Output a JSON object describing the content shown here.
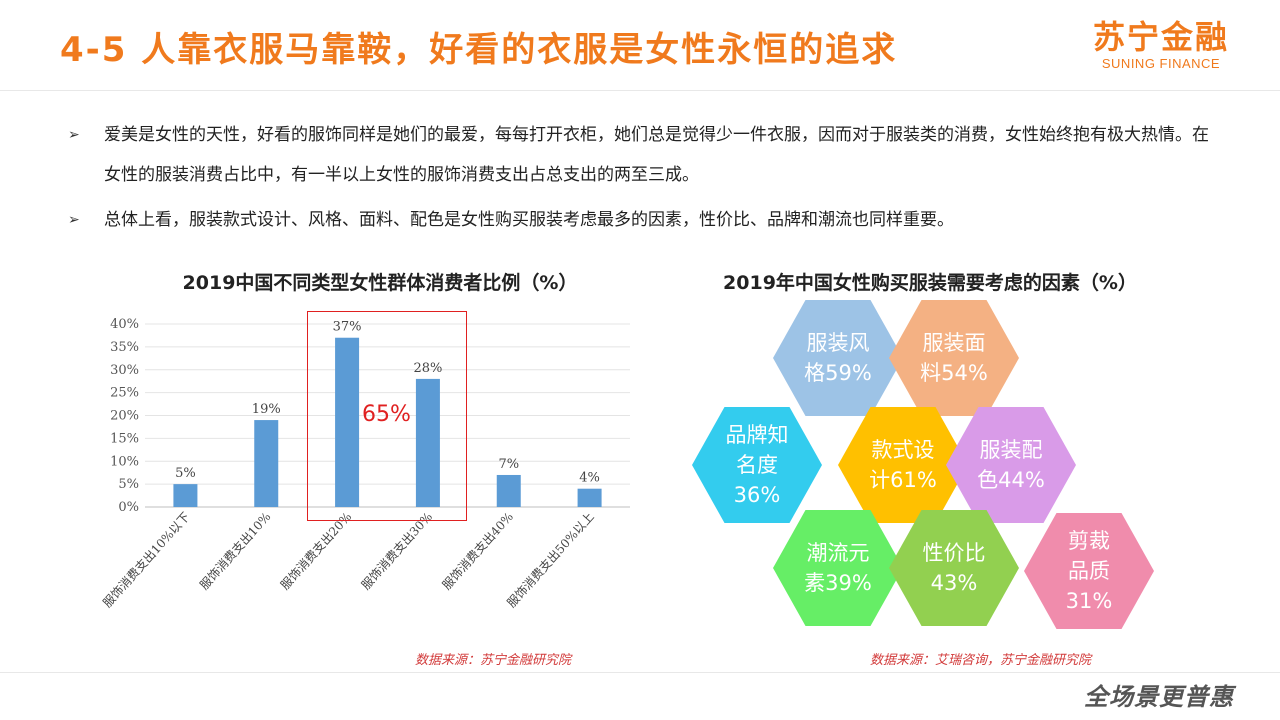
{
  "header": {
    "title": "4-5  人靠衣服马靠鞍，好看的衣服是女性永恒的追求",
    "logo_cn": "苏宁金融",
    "logo_en": "SUNING FINANCE"
  },
  "bullets": [
    "爱美是女性的天性，好看的服饰同样是她们的最爱，每每打开衣柜，她们总是觉得少一件衣服，因而对于服装类的消费，女性始终抱有极大热情。在女性的服装消费占比中，有一半以上女性的服饰消费支出占总支出的两至三成。",
    "总体上看，服装款式设计、风格、面料、配色是女性购买服装考虑最多的因素，性价比、品牌和潮流也同样重要。"
  ],
  "bullet_marker": "➢",
  "bar_chart": {
    "highlight_label": "65%",
    "source": "数据来源：苏宁金融研究院"
  },
  "chart_data": [
    {
      "type": "bar",
      "title": "2019中国不同类型女性群体消费者比例（%）",
      "categories": [
        "服饰消费支出10%以下",
        "服饰消费支出10%",
        "服饰消费支出20%",
        "服饰消费支出30%",
        "服饰消费支出40%",
        "服饰消费支出50%以上"
      ],
      "values": [
        5,
        19,
        37,
        28,
        7,
        4
      ],
      "data_labels": [
        "5%",
        "19%",
        "37%",
        "28%",
        "7%",
        "4%"
      ],
      "yticks": [
        "0%",
        "5%",
        "10%",
        "15%",
        "20%",
        "25%",
        "30%",
        "35%",
        "40%"
      ],
      "ylim": [
        0,
        40
      ],
      "grid": true,
      "bar_color": "#5b9bd5"
    }
  ],
  "factors": {
    "title": "2019年中国女性购买服装需要考虑的因素（%）",
    "source": "数据来源：艾瑞咨询，苏宁金融研究院",
    "items": [
      {
        "lines": [
          "服装风",
          "格59%"
        ],
        "color": "#9dc3e6"
      },
      {
        "lines": [
          "服装面",
          "料54%"
        ],
        "color": "#f4b183"
      },
      {
        "lines": [
          "品牌知",
          "名度",
          "36%"
        ],
        "color": "#33ccee"
      },
      {
        "lines": [
          "款式设",
          "计61%"
        ],
        "color": "#ffc000"
      },
      {
        "lines": [
          "服装配",
          "色44%"
        ],
        "color": "#d99be8"
      },
      {
        "lines": [
          "潮流元",
          "素39%"
        ],
        "color": "#66ee66"
      },
      {
        "lines": [
          "性价比",
          "43%"
        ],
        "color": "#92d050"
      },
      {
        "lines": [
          "剪裁",
          "品质",
          "31%"
        ],
        "color": "#f08cac"
      }
    ]
  },
  "footer": {
    "slogan": "全场景更普惠"
  }
}
